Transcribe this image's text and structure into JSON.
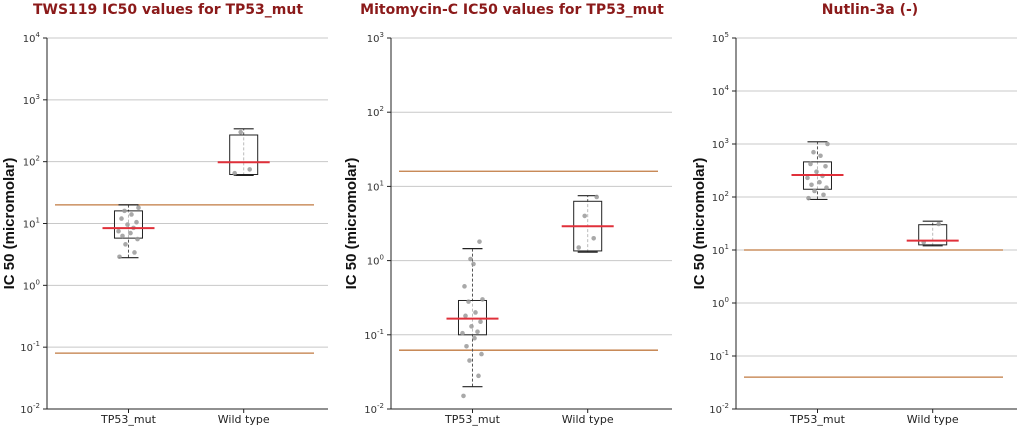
{
  "colors": {
    "title": "#8b1a1a",
    "median": "#e0303a",
    "threshold": "#c07a40",
    "grid": "#c8c8c8",
    "point": "#9a9a9a",
    "axis": "#222222"
  },
  "chart_data": [
    {
      "type": "boxplot",
      "title": "TWS119 IC50 values for TP53_mut",
      "ylabel": "IC 50 (micromolar)",
      "yscale": "log10",
      "ylim": [
        0.01,
        10000
      ],
      "yticks": [
        {
          "base": "10",
          "exp": "-2"
        },
        {
          "base": "10",
          "exp": "-1"
        },
        {
          "base": "10",
          "exp": "0"
        },
        {
          "base": "10",
          "exp": "1"
        },
        {
          "base": "10",
          "exp": "2"
        },
        {
          "base": "10",
          "exp": "3"
        },
        {
          "base": "10",
          "exp": "4"
        }
      ],
      "categories": [
        "TP53_mut",
        "Wild type"
      ],
      "thresholds": [
        20,
        0.08
      ],
      "boxes": [
        {
          "category": "TP53_mut",
          "whisker_low": 2.8,
          "q1": 5.8,
          "median": 8.4,
          "q3": 16,
          "whisker_high": 20,
          "points": [
            2.9,
            3.4,
            4.6,
            5.6,
            6.3,
            7.0,
            7.5,
            8.5,
            9.6,
            10.5,
            12,
            14,
            16,
            18
          ]
        },
        {
          "category": "Wild type",
          "whisker_low": 60,
          "q1": 62,
          "median": 98,
          "q3": 270,
          "whisker_high": 340,
          "points": [
            65,
            75,
            300
          ]
        }
      ]
    },
    {
      "type": "boxplot",
      "title": "Mitomycin-C IC50 values for TP53_mut",
      "ylabel": "IC 50 (micromolar)",
      "yscale": "log10",
      "ylim": [
        0.01,
        1000
      ],
      "yticks": [
        {
          "base": "10",
          "exp": "-2"
        },
        {
          "base": "10",
          "exp": "-1"
        },
        {
          "base": "10",
          "exp": "0"
        },
        {
          "base": "10",
          "exp": "1"
        },
        {
          "base": "10",
          "exp": "2"
        },
        {
          "base": "10",
          "exp": "3"
        }
      ],
      "categories": [
        "TP53_mut",
        "Wild type"
      ],
      "thresholds": [
        16,
        0.062
      ],
      "boxes": [
        {
          "category": "TP53_mut",
          "whisker_low": 0.02,
          "q1": 0.1,
          "median": 0.165,
          "q3": 0.29,
          "whisker_high": 1.45,
          "points": [
            0.015,
            0.028,
            0.045,
            0.055,
            0.07,
            0.09,
            0.105,
            0.11,
            0.13,
            0.15,
            0.18,
            0.2,
            0.28,
            0.3,
            0.45,
            0.9,
            1.05,
            1.8
          ]
        },
        {
          "category": "Wild type",
          "whisker_low": 1.3,
          "q1": 1.35,
          "median": 2.9,
          "q3": 6.3,
          "whisker_high": 7.5,
          "points": [
            1.5,
            2.0,
            4.0,
            7.2
          ]
        }
      ]
    },
    {
      "type": "boxplot",
      "title": "Nutlin-3a (-)",
      "ylabel": "IC 50 (micromolar)",
      "yscale": "log10",
      "ylim": [
        0.01,
        100000
      ],
      "yticks": [
        {
          "base": "10",
          "exp": "-2"
        },
        {
          "base": "10",
          "exp": "-1"
        },
        {
          "base": "10",
          "exp": "0"
        },
        {
          "base": "10",
          "exp": "1"
        },
        {
          "base": "10",
          "exp": "2"
        },
        {
          "base": "10",
          "exp": "3"
        },
        {
          "base": "10",
          "exp": "4"
        },
        {
          "base": "10",
          "exp": "5"
        }
      ],
      "categories": [
        "TP53_mut",
        "Wild type"
      ],
      "thresholds": [
        10,
        0.04
      ],
      "boxes": [
        {
          "category": "TP53_mut",
          "whisker_low": 90,
          "q1": 140,
          "median": 260,
          "q3": 460,
          "whisker_high": 1100,
          "points": [
            95,
            110,
            130,
            150,
            170,
            190,
            230,
            250,
            300,
            380,
            420,
            600,
            700,
            1000
          ]
        },
        {
          "category": "Wild type",
          "whisker_low": 12,
          "q1": 12.5,
          "median": 15,
          "q3": 30,
          "whisker_high": 35,
          "points": [
            14,
            31
          ]
        }
      ]
    }
  ]
}
